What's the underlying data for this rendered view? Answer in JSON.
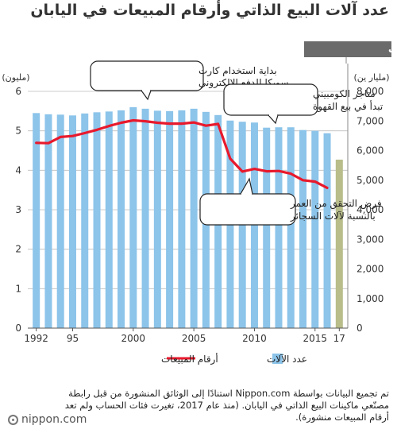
{
  "title": "عدد آلات البيع الذاتي وأرقام المبيعات في اليابان",
  "banner_label": "تغير طريقة الحساب",
  "source_note": "تم تجميع البيانات بواسطة Nippon.com استنادًا إلى الوثائق المنشورة من قبل رابطة مصنّعي ماكينات البيع الذاتي في اليابان. (منذ عام 2017، تغيرت فئات الحساب ولم تعد أرقام المبيعات منشورة).",
  "logo_text": "nippon.com",
  "colors": {
    "bars": "#8cc4ea",
    "line": "#e8192c",
    "last_bar": "#b8bd8a",
    "banner": "#6b6b6b"
  },
  "chart_data": {
    "type": "bar",
    "left_axis_label": "(مليون)",
    "right_axis_label": "(مليار ين)",
    "x_tick_labels": [
      {
        "year": 1992,
        "label": "1992"
      },
      {
        "year": 1995,
        "label": "95"
      },
      {
        "year": 2000,
        "label": "2000"
      },
      {
        "year": 2005,
        "label": "2005"
      },
      {
        "year": 2010,
        "label": "2010"
      },
      {
        "year": 2015,
        "label": "2015"
      },
      {
        "year": 2017,
        "label": "17"
      }
    ],
    "left_ticks": [
      "0",
      "1",
      "2",
      "3",
      "4",
      "5",
      "6"
    ],
    "right_ticks": [
      "0",
      "1,000",
      "2,000",
      "3,000",
      "4,000",
      "5,000",
      "6,000",
      "7,000",
      "8,000"
    ],
    "ylim_left": [
      0,
      6
    ],
    "ylim_right": [
      0,
      8000
    ],
    "years": [
      1992,
      1993,
      1994,
      1995,
      1996,
      1997,
      1998,
      1999,
      2000,
      2001,
      2002,
      2003,
      2004,
      2005,
      2006,
      2007,
      2008,
      2009,
      2010,
      2011,
      2012,
      2013,
      2014,
      2015,
      2016,
      2017
    ],
    "machines": [
      5.45,
      5.42,
      5.41,
      5.39,
      5.44,
      5.47,
      5.49,
      5.52,
      5.6,
      5.56,
      5.51,
      5.5,
      5.52,
      5.56,
      5.48,
      5.4,
      5.26,
      5.23,
      5.21,
      5.08,
      5.09,
      5.09,
      5.02,
      5.0,
      4.94,
      4.27
    ],
    "sales": [
      6260,
      6250,
      6460,
      6490,
      6590,
      6700,
      6830,
      6940,
      7020,
      6990,
      6940,
      6910,
      6910,
      6950,
      6840,
      6900,
      5730,
      5290,
      5380,
      5300,
      5310,
      5220,
      5000,
      4950,
      4740
    ],
    "series": [
      {
        "name": "عدد الآلات",
        "key": "machines"
      },
      {
        "name": "أرقام المبيعات",
        "key": "sales"
      }
    ],
    "annotations": [
      {
        "key": "suica",
        "lines": [
          "بداية استخدام كارت",
          "سويكا للدفع الإلكتروني"
        ]
      },
      {
        "key": "convenience",
        "lines": [
          "متاجر الكومبيني",
          "تبدأ في بيع القهوة"
        ]
      },
      {
        "key": "taspo",
        "lines": [
          "فرض التحقق من العمر",
          "بالنسبة لآلات السجائر"
        ]
      }
    ]
  }
}
